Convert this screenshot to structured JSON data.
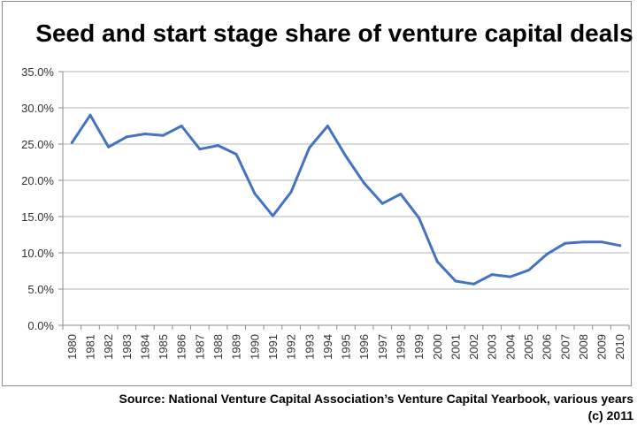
{
  "colors": {
    "line": "#4472c4",
    "grid": "#b3b3b3",
    "axis": "#8c8c8c"
  },
  "chart_data": {
    "type": "line",
    "title": "Seed and start stage share of venture capital deals",
    "xlabel": "",
    "ylabel": "",
    "ylim": [
      0,
      35
    ],
    "ytick_values": [
      0,
      5,
      10,
      15,
      20,
      25,
      30,
      35
    ],
    "ytick_labels": [
      "0.0%",
      "5.0%",
      "10.0%",
      "15.0%",
      "20.0%",
      "25.0%",
      "30.0%",
      "35.0%"
    ],
    "grid": "horizontal",
    "legend": "none",
    "categories": [
      "1980",
      "1981",
      "1982",
      "1983",
      "1984",
      "1985",
      "1986",
      "1987",
      "1988",
      "1989",
      "1990",
      "1991",
      "1992",
      "1993",
      "1994",
      "1995",
      "1996",
      "1997",
      "1998",
      "1999",
      "2000",
      "2001",
      "2002",
      "2003",
      "2004",
      "2005",
      "2006",
      "2007",
      "2008",
      "2009",
      "2010"
    ],
    "series": [
      {
        "values": [
          25.2,
          29.0,
          24.6,
          26.0,
          26.4,
          26.2,
          27.5,
          24.3,
          24.8,
          23.6,
          18.2,
          15.1,
          18.4,
          24.5,
          27.5,
          23.3,
          19.6,
          16.8,
          18.1,
          14.8,
          8.8,
          6.1,
          5.7,
          7.0,
          6.7,
          7.6,
          9.8,
          11.3,
          11.5,
          11.5,
          11.0
        ]
      }
    ]
  },
  "footer": {
    "source": "Source: National Venture Capital Association’s Venture Capital Yearbook, various years",
    "copyright": "(c) 2011"
  }
}
